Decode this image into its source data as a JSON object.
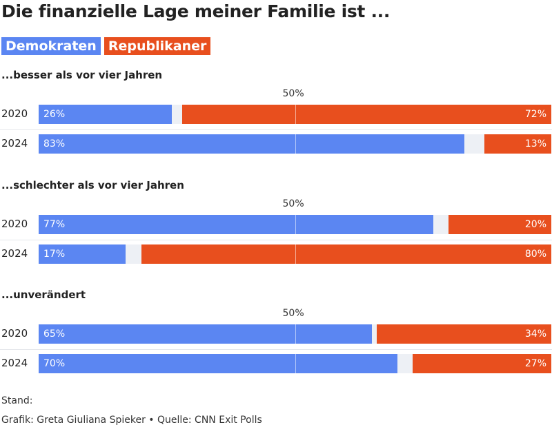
{
  "title": "Die finanzielle Lage meiner Familie ist ...",
  "legend": [
    {
      "label": "Demokraten",
      "color": "#5b86f2"
    },
    {
      "label": "Republikaner",
      "color": "#e84f1e"
    }
  ],
  "gap_color": "#edf0f5",
  "footer": {
    "stand": "Stand:",
    "credit": "Grafik: Greta Giuliana Spieker • Quelle: CNN Exit Polls"
  },
  "chart_data": {
    "type": "bar",
    "stacked": true,
    "orientation": "horizontal",
    "xlim": [
      0,
      100
    ],
    "reference_line": {
      "value": 50,
      "label": "50%"
    },
    "groups": [
      {
        "title": "...besser als vor vier Jahren",
        "categories": [
          "2020",
          "2024"
        ],
        "series": [
          {
            "name": "Demokraten",
            "values": [
              26,
              83
            ]
          },
          {
            "name": "Republikaner",
            "values": [
              72,
              13
            ]
          }
        ]
      },
      {
        "title": "...schlechter als vor vier Jahren",
        "categories": [
          "2020",
          "2024"
        ],
        "series": [
          {
            "name": "Demokraten",
            "values": [
              77,
              17
            ]
          },
          {
            "name": "Republikaner",
            "values": [
              20,
              80
            ]
          }
        ]
      },
      {
        "title": "...unverändert",
        "categories": [
          "2020",
          "2024"
        ],
        "series": [
          {
            "name": "Demokraten",
            "values": [
              65,
              70
            ]
          },
          {
            "name": "Republikaner",
            "values": [
              34,
              27
            ]
          }
        ]
      }
    ]
  }
}
